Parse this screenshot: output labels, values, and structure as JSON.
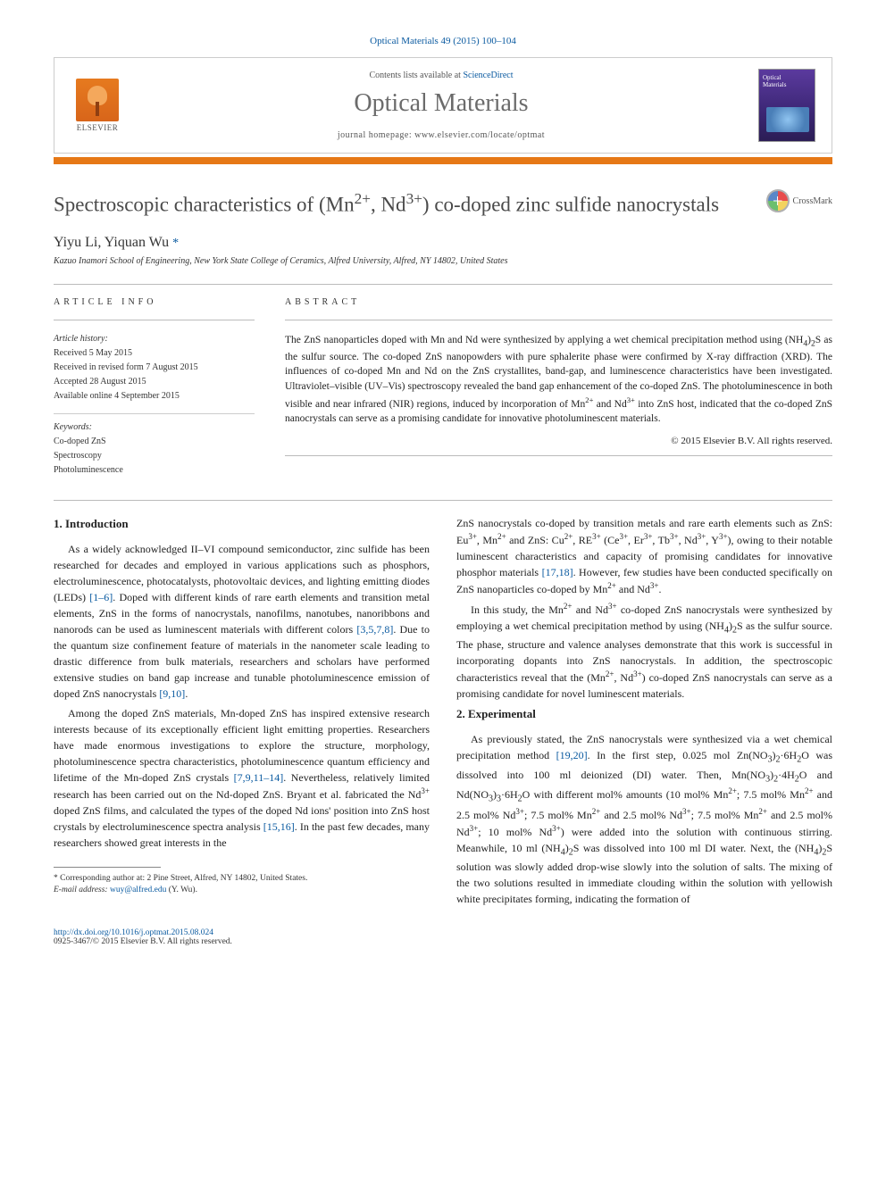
{
  "header": {
    "citation": "Optical Materials 49 (2015) 100–104",
    "contents_prefix": "Contents lists available at ",
    "contents_link": "ScienceDirect",
    "journal_name": "Optical Materials",
    "homepage_prefix": "journal homepage: ",
    "homepage_url": "www.elsevier.com/locate/optmat",
    "publisher": "ELSEVIER"
  },
  "crossmark": {
    "label": "CrossMark"
  },
  "article": {
    "title_html": "Spectroscopic characteristics of (Mn<sup>2+</sup>, Nd<sup>3+</sup>) co-doped zinc sulfide nanocrystals",
    "authors_html": "Yiyu Li, Yiquan Wu <span class=\"corr\">*</span>",
    "affiliation": "Kazuo Inamori School of Engineering, New York State College of Ceramics, Alfred University, Alfred, NY 14802, United States"
  },
  "article_info": {
    "heading": "ARTICLE INFO",
    "history_label": "Article history:",
    "received": "Received 5 May 2015",
    "revised": "Received in revised form 7 August 2015",
    "accepted": "Accepted 28 August 2015",
    "online": "Available online 4 September 2015",
    "keywords_label": "Keywords:",
    "keywords": [
      "Co-doped ZnS",
      "Spectroscopy",
      "Photoluminescence"
    ]
  },
  "abstract": {
    "heading": "ABSTRACT",
    "text_html": "The ZnS nanoparticles doped with Mn and Nd were synthesized by applying a wet chemical precipitation method using (NH<sub>4</sub>)<sub>2</sub>S as the sulfur source. The co-doped ZnS nanopowders with pure sphalerite phase were confirmed by X-ray diffraction (XRD). The influences of co-doped Mn and Nd on the ZnS crystallites, band-gap, and luminescence characteristics have been investigated. Ultraviolet–visible (UV–Vis) spectroscopy revealed the band gap enhancement of the co-doped ZnS. The photoluminescence in both visible and near infrared (NIR) regions, induced by incorporation of Mn<sup>2+</sup> and Nd<sup>3+</sup> into ZnS host, indicated that the co-doped ZnS nanocrystals can serve as a promising candidate for innovative photoluminescent materials.",
    "copyright": "© 2015 Elsevier B.V. All rights reserved."
  },
  "sections": {
    "intro_heading": "1. Introduction",
    "intro_p1_html": "As a widely acknowledged II–VI compound semiconductor, zinc sulfide has been researched for decades and employed in various applications such as phosphors, electroluminescence, photocatalysts, photovoltaic devices, and lighting emitting diodes (LEDs) <a href=\"#\">[1–6]</a>. Doped with different kinds of rare earth elements and transition metal elements, ZnS in the forms of nanocrystals, nanofilms, nanotubes, nanoribbons and nanorods can be used as luminescent materials with different colors <a href=\"#\">[3,5,7,8]</a>. Due to the quantum size confinement feature of materials in the nanometer scale leading to drastic difference from bulk materials, researchers and scholars have performed extensive studies on band gap increase and tunable photoluminescence emission of doped ZnS nanocrystals <a href=\"#\">[9,10]</a>.",
    "intro_p2_html": "Among the doped ZnS materials, Mn-doped ZnS has inspired extensive research interests because of its exceptionally efficient light emitting properties. Researchers have made enormous investigations to explore the structure, morphology, photoluminescence spectra characteristics, photoluminescence quantum efficiency and lifetime of the Mn-doped ZnS crystals <a href=\"#\">[7,9,11–14]</a>. Nevertheless, relatively limited research has been carried out on the Nd-doped ZnS. Bryant et al. fabricated the Nd<sup>3+</sup> doped ZnS films, and calculated the types of the doped Nd ions' position into ZnS host crystals by electroluminescence spectra analysis <a href=\"#\">[15,16]</a>. In the past few decades, many researchers showed great interests in the",
    "intro_p3_html": "ZnS nanocrystals co-doped by transition metals and rare earth elements such as ZnS: Eu<sup>3+</sup>, Mn<sup>2+</sup> and ZnS: Cu<sup>2+</sup>, RE<sup>3+</sup> (Ce<sup>3+</sup>, Er<sup>3+</sup>, Tb<sup>3+</sup>, Nd<sup>3+</sup>, Y<sup>3+</sup>), owing to their notable luminescent characteristics and capacity of promising candidates for innovative phosphor materials <a href=\"#\">[17,18]</a>. However, few studies have been conducted specifically on ZnS nanoparticles co-doped by Mn<sup>2+</sup> and Nd<sup>3+</sup>.",
    "intro_p4_html": "In this study, the Mn<sup>2+</sup> and Nd<sup>3+</sup> co-doped ZnS nanocrystals were synthesized by employing a wet chemical precipitation method by using (NH<sub>4</sub>)<sub>2</sub>S as the sulfur source. The phase, structure and valence analyses demonstrate that this work is successful in incorporating dopants into ZnS nanocrystals. In addition, the spectroscopic characteristics reveal that the (Mn<sup>2+</sup>, Nd<sup>3+</sup>) co-doped ZnS nanocrystals can serve as a promising candidate for novel luminescent materials.",
    "exp_heading": "2. Experimental",
    "exp_p1_html": "As previously stated, the ZnS nanocrystals were synthesized via a wet chemical precipitation method <a href=\"#\">[19,20]</a>. In the first step, 0.025 mol Zn(NO<sub>3</sub>)<sub>2</sub>·6H<sub>2</sub>O was dissolved into 100 ml deionized (DI) water. Then, Mn(NO<sub>3</sub>)<sub>2</sub>·4H<sub>2</sub>O and Nd(NO<sub>3</sub>)<sub>3</sub>·6H<sub>2</sub>O with different mol% amounts (10 mol% Mn<sup>2+</sup>; 7.5 mol% Mn<sup>2+</sup> and 2.5 mol% Nd<sup>3+</sup>; 7.5 mol% Mn<sup>2+</sup> and 2.5 mol% Nd<sup>3+</sup>; 7.5 mol% Mn<sup>2+</sup> and 2.5 mol% Nd<sup>3+</sup>; 10 mol% Nd<sup>3+</sup>) were added into the solution with continuous stirring. Meanwhile, 10 ml (NH<sub>4</sub>)<sub>2</sub>S was dissolved into 100 ml DI water. Next, the (NH<sub>4</sub>)<sub>2</sub>S solution was slowly added drop-wise slowly into the solution of salts. The mixing of the two solutions resulted in immediate clouding within the solution with yellowish white precipitates forming, indicating the formation of"
  },
  "footnote": {
    "corr_html": "* Corresponding author at: 2 Pine Street, Alfred, NY 14802, United States.",
    "email_label": "E-mail address:",
    "email": "wuy@alfred.edu",
    "email_who": "(Y. Wu)."
  },
  "footer": {
    "doi": "http://dx.doi.org/10.1016/j.optmat.2015.08.024",
    "issn_line": "0925-3467/© 2015 Elsevier B.V. All rights reserved."
  },
  "colors": {
    "link": "#0a5aa0",
    "orange_rule": "#e67816",
    "title_gray": "#4a4a4a",
    "journal_gray": "#6b6b6b"
  }
}
